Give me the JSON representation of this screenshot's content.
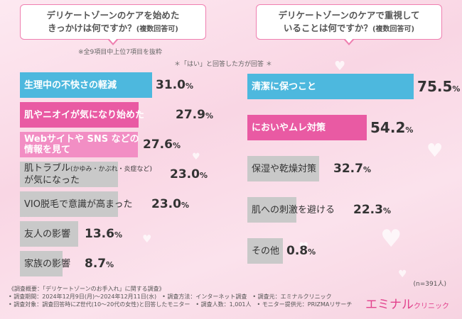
{
  "left_question": {
    "line1": "デリケートゾーンのケアを始めた",
    "line2": "きっかけは何ですか？",
    "line2_small": "(複数回答可)",
    "note": "※全9項目中上位7項目を抜粋"
  },
  "right_question": {
    "line1": "デリケートゾーンのケアで重視して",
    "line2": "いることは何ですか？",
    "line2_small": "(複数回答可)"
  },
  "center_note": "＊「はい」と回答した方が回答 ＊",
  "sample_size": "(n=391人)",
  "colors": {
    "top": "#4db8de",
    "second": "#e95aa3",
    "third": "#f28ec4",
    "plain": "#c9c9c9"
  },
  "chart_data": [
    {
      "type": "bar",
      "orientation": "horizontal",
      "categories": [
        "生理中の不快さの軽減",
        "肌やニオイが気になり始めた",
        "Webサイトや SNS などの 情報を見て",
        "肌トラブル(かゆみ・かぶれ・炎症など) が気になった",
        "VIO脱毛で意識が高まった",
        "友人の影響",
        "家族の影響"
      ],
      "values": [
        31.0,
        27.9,
        27.6,
        23.0,
        23.0,
        13.6,
        8.7
      ],
      "unit": "%",
      "display_values": [
        "31.0",
        "27.9",
        "27.6",
        "23.0",
        "23.0",
        "13.6",
        "8.7"
      ],
      "labels": [
        {
          "main": "生理中の不快さの軽減"
        },
        {
          "main": "肌やニオイが気になり始めた"
        },
        {
          "main": "Webサイトや SNS などの",
          "line2": "情報を見て"
        },
        {
          "main": "肌トラブル",
          "small": "(かゆみ・かぶれ・炎症など)",
          "line2": "が気になった"
        },
        {
          "main": "VIO脱毛で意識が高まった"
        },
        {
          "main": "友人の影響"
        },
        {
          "main": "家族の影響"
        }
      ]
    },
    {
      "type": "bar",
      "orientation": "horizontal",
      "categories": [
        "清潔に保つこと",
        "においやムレ対策",
        "保湿や乾燥対策",
        "肌への刺激を避ける",
        "その他"
      ],
      "values": [
        75.5,
        54.2,
        32.7,
        22.3,
        0.8
      ],
      "unit": "%",
      "display_values": [
        "75.5",
        "54.2",
        "32.7",
        "22.3",
        "0.8"
      ],
      "labels": [
        {
          "main": "清潔に保つこと"
        },
        {
          "main": "においやムレ対策"
        },
        {
          "main": "保湿や乾燥対策"
        },
        {
          "main": "肌への刺激を避ける"
        },
        {
          "main": "その他"
        }
      ]
    }
  ],
  "footer": {
    "line1": "《調査概要：「デリケートゾーンのお手入れ」に関する調査》",
    "line2": "• 調査期間：2024年12月9日(月)〜2024年12月11日(水)　• 調査方法：インターネット調査　• 調査元：エミナルクリニック",
    "line3": "• 調査対象：調査回答時にZ世代(10〜20代の女性)と回答したモニター　• 調査人数：1,001人　• モニター提供元：PRIZMAリサーチ"
  },
  "logo": {
    "main": "エミナル",
    "sub": "クリニック"
  }
}
